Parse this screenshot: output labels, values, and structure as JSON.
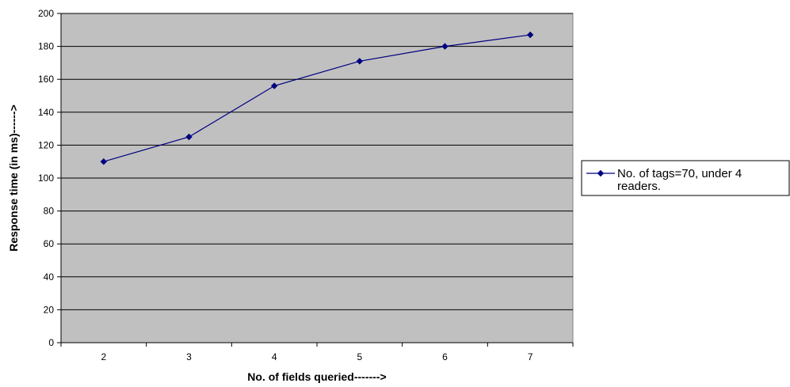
{
  "chart_data": {
    "type": "line",
    "title": "",
    "xlabel": "No. of fields queried------->",
    "ylabel": "Response time (in ms)------>",
    "categories": [
      "2",
      "3",
      "4",
      "5",
      "6",
      "7"
    ],
    "ylim": [
      0,
      200
    ],
    "yticks": [
      0,
      20,
      40,
      60,
      80,
      100,
      120,
      140,
      160,
      180,
      200
    ],
    "grid": "horizontal",
    "legend_position": "right",
    "series": [
      {
        "name": "No. of tags=70, under 4 readers.",
        "legend_lines": [
          "No. of tags=70, under 4",
          "readers."
        ],
        "values": [
          110,
          125,
          156,
          171,
          180,
          187
        ],
        "color": "#000080",
        "marker": "diamond"
      }
    ],
    "colors": {
      "plot_background": "#c0c0c0",
      "gridline": "#000000",
      "axis": "#000000"
    }
  }
}
